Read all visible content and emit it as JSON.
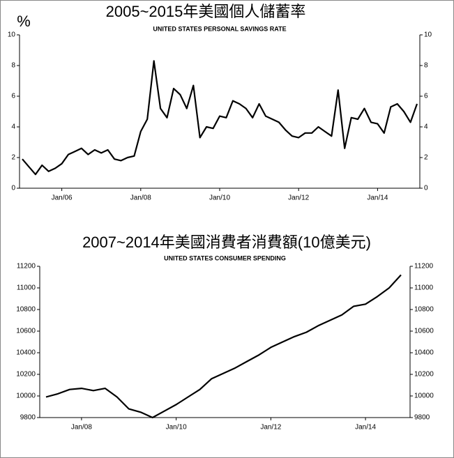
{
  "chart_data": [
    {
      "type": "line",
      "title": "2005~2015年美國個人儲蓄率",
      "subtitle": "UNITED STATES PERSONAL SAVINGS RATE",
      "y_label": "%",
      "categories": [
        null,
        null,
        null,
        null,
        null,
        null,
        "Jan/06",
        null,
        null,
        null,
        null,
        null,
        null,
        null,
        null,
        null,
        null,
        null,
        "Jan/08",
        null,
        null,
        null,
        null,
        null,
        null,
        null,
        null,
        null,
        null,
        null,
        "Jan/10",
        null,
        null,
        null,
        null,
        null,
        null,
        null,
        null,
        null,
        null,
        null,
        "Jan/12",
        null,
        null,
        null,
        null,
        null,
        null,
        null,
        null,
        null,
        null,
        null,
        "Jan/14",
        null,
        null,
        null,
        null,
        null,
        null
      ],
      "series": [
        {
          "name": "Personal Savings Rate",
          "color": "#000000",
          "values": [
            1.9,
            1.4,
            0.9,
            1.5,
            1.1,
            1.3,
            1.6,
            2.2,
            2.4,
            2.6,
            2.2,
            2.5,
            2.3,
            2.5,
            1.9,
            1.8,
            2.0,
            2.1,
            3.7,
            4.5,
            8.3,
            5.2,
            4.6,
            6.5,
            6.1,
            5.2,
            6.7,
            3.3,
            4.0,
            3.9,
            4.7,
            4.6,
            5.7,
            5.5,
            5.2,
            4.6,
            5.5,
            4.7,
            4.5,
            4.3,
            3.8,
            3.4,
            3.3,
            3.6,
            3.6,
            4.0,
            3.7,
            3.4,
            6.4,
            2.6,
            4.6,
            4.5,
            5.2,
            4.3,
            4.2,
            3.6,
            5.3,
            5.5,
            5.0,
            4.3,
            5.5
          ]
        }
      ],
      "ylim": [
        0,
        10
      ],
      "yticks": [
        0,
        2,
        4,
        6,
        8,
        10
      ]
    },
    {
      "type": "line",
      "title": "2007~2014年美國消費者消費額(10億美元)",
      "subtitle": "UNITED STATES CONSUMER SPENDING",
      "categories": [
        null,
        null,
        null,
        "Jan/08",
        null,
        null,
        null,
        null,
        null,
        null,
        null,
        "Jan/10",
        null,
        null,
        null,
        null,
        null,
        null,
        null,
        "Jan/12",
        null,
        null,
        null,
        null,
        null,
        null,
        null,
        "Jan/14",
        null,
        null,
        null
      ],
      "series": [
        {
          "name": "Consumer Spending",
          "color": "#000000",
          "values": [
            9990,
            10020,
            10060,
            10070,
            10050,
            10070,
            9990,
            9880,
            9850,
            9800,
            9860,
            9920,
            9990,
            10060,
            10160,
            10210,
            10260,
            10320,
            10380,
            10450,
            10500,
            10550,
            10590,
            10650,
            10700,
            10750,
            10830,
            10850,
            10920,
            11000,
            11120
          ]
        }
      ],
      "ylim": [
        9800,
        11200
      ],
      "yticks": [
        9800,
        10000,
        10200,
        10400,
        10600,
        10800,
        11000,
        11200
      ]
    }
  ]
}
